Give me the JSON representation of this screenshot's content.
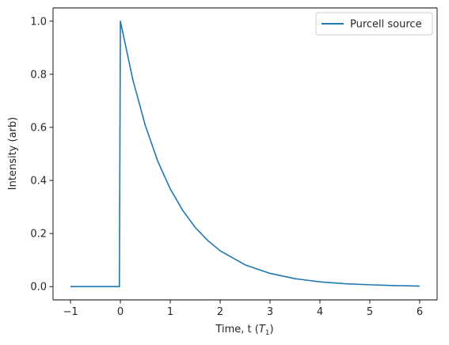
{
  "chart_data": {
    "type": "line",
    "xlabel_prefix": "Time, t (",
    "xlabel_symbol": "T",
    "xlabel_subscript": "1",
    "xlabel_suffix": ")",
    "ylabel": "Intensity (arb)",
    "xlim": [
      -1.35,
      6.35
    ],
    "ylim": [
      -0.05,
      1.05
    ],
    "x_ticks": [
      -1,
      0,
      1,
      2,
      3,
      4,
      5,
      6
    ],
    "x_tick_labels": [
      "−1",
      "0",
      "1",
      "2",
      "3",
      "4",
      "5",
      "6"
    ],
    "y_ticks": [
      0.0,
      0.2,
      0.4,
      0.6,
      0.8,
      1.0
    ],
    "y_tick_labels": [
      "0.0",
      "0.2",
      "0.4",
      "0.6",
      "0.8",
      "1.0"
    ],
    "grid": false,
    "legend_position": "top-right",
    "series": [
      {
        "name": "Purcell source",
        "color": "#1f77b4",
        "x": [
          -1.0,
          -0.5,
          -0.02,
          0.0,
          0.25,
          0.5,
          0.75,
          1.0,
          1.25,
          1.5,
          1.75,
          2.0,
          2.5,
          3.0,
          3.5,
          4.0,
          4.5,
          5.0,
          5.5,
          6.0
        ],
        "y": [
          0.0,
          0.0,
          0.0,
          1.0,
          0.779,
          0.607,
          0.472,
          0.368,
          0.287,
          0.223,
          0.174,
          0.135,
          0.082,
          0.05,
          0.03,
          0.018,
          0.011,
          0.007,
          0.004,
          0.002
        ]
      }
    ]
  }
}
